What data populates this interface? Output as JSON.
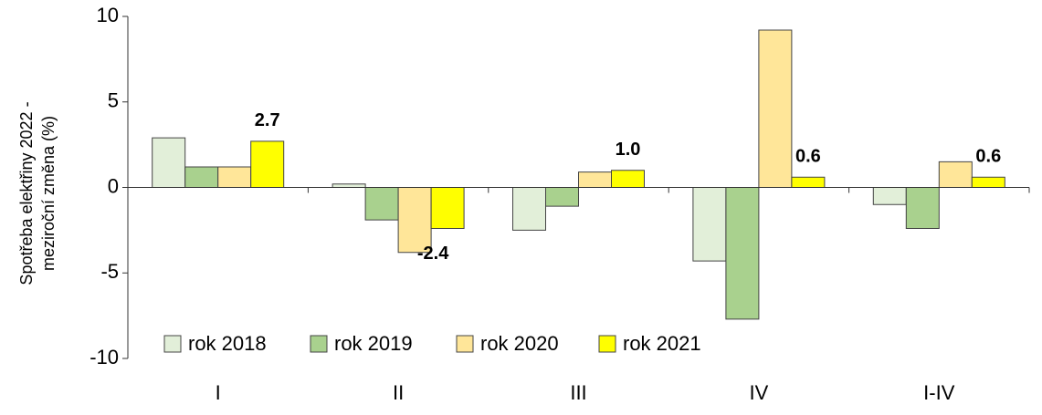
{
  "chart_data": {
    "type": "bar",
    "ylabel": [
      "Spotřeba elektřiny 2022 -",
      "meziroční změna (%)"
    ],
    "categories": [
      "I",
      "II",
      "III",
      "IV",
      "I-IV"
    ],
    "series": [
      {
        "name": "rok 2018",
        "color": "#e2efd9",
        "values": [
          2.9,
          0.2,
          -2.5,
          -4.3,
          -1.0
        ]
      },
      {
        "name": "rok 2019",
        "color": "#a9d18e",
        "values": [
          1.2,
          -1.9,
          -1.1,
          -7.7,
          -2.4
        ]
      },
      {
        "name": "rok 2020",
        "color": "#ffe699",
        "values": [
          1.2,
          -3.8,
          0.9,
          9.2,
          1.5
        ]
      },
      {
        "name": "rok 2021",
        "color": "#ffff00",
        "values": [
          2.7,
          -2.4,
          1.0,
          0.6,
          0.6
        ],
        "value_labels": [
          "2.7",
          "-2.4",
          "1.0",
          "0.6",
          "0.6"
        ]
      }
    ],
    "ylim": [
      -10,
      10
    ],
    "yticks": [
      -10,
      -5,
      0,
      5,
      10
    ],
    "grid": false,
    "legend": "bottom"
  }
}
